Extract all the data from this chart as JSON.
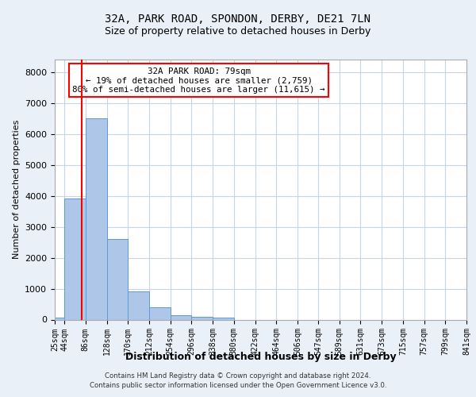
{
  "title_line1": "32A, PARK ROAD, SPONDON, DERBY, DE21 7LN",
  "title_line2": "Size of property relative to detached houses in Derby",
  "xlabel": "Distribution of detached houses by size in Derby",
  "ylabel": "Number of detached properties",
  "footer_line1": "Contains HM Land Registry data © Crown copyright and database right 2024.",
  "footer_line2": "Contains public sector information licensed under the Open Government Licence v3.0.",
  "annotation_line1": "32A PARK ROAD: 79sqm",
  "annotation_line2": "← 19% of detached houses are smaller (2,759)",
  "annotation_line3": "80% of semi-detached houses are larger (11,615) →",
  "bin_edges": [
    25,
    44,
    86,
    128,
    170,
    212,
    254,
    296,
    338,
    380,
    422,
    464,
    506,
    547,
    589,
    631,
    673,
    715,
    757,
    799,
    841
  ],
  "bar_heights": [
    60,
    3900,
    6500,
    2600,
    900,
    390,
    130,
    100,
    60,
    0,
    0,
    0,
    0,
    0,
    0,
    0,
    0,
    0,
    0,
    0
  ],
  "bar_color": "#aec6e8",
  "bar_edge_color": "#5b9bd5",
  "red_line_x": 79,
  "ylim": [
    0,
    8400
  ],
  "yticks": [
    0,
    1000,
    2000,
    3000,
    4000,
    5000,
    6000,
    7000,
    8000
  ],
  "annotation_box_color": "white",
  "annotation_box_edge_color": "red",
  "bg_color": "#eaf0f8",
  "plot_bg_color": "white",
  "grid_color": "#c8d4e8"
}
